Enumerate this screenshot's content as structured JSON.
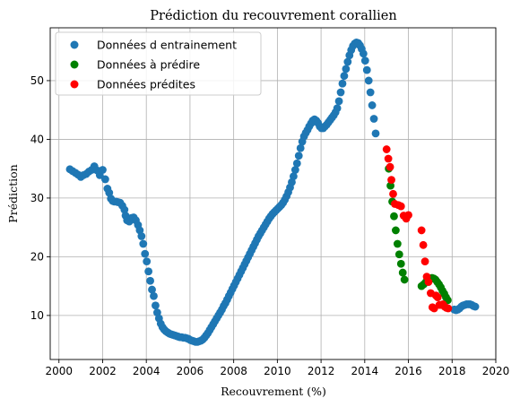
{
  "chart_data": {
    "type": "scatter",
    "title": "Prédiction du recouvrement corallien",
    "xlabel": "Recouvrement (%)",
    "ylabel": "Prédiction",
    "xlim": [
      1999.6,
      2020.0
    ],
    "ylim": [
      2.5,
      59.0
    ],
    "xticks": [
      2000,
      2002,
      2004,
      2006,
      2008,
      2010,
      2012,
      2014,
      2016,
      2018,
      2020
    ],
    "yticks": [
      10,
      20,
      30,
      40,
      50
    ],
    "grid": true,
    "legend_position": "top-left",
    "series": [
      {
        "name": "Données d entrainement",
        "color": "#1f77b4",
        "points": [
          [
            2000.5,
            34.9
          ],
          [
            2000.62,
            34.6
          ],
          [
            2000.75,
            34.3
          ],
          [
            2000.87,
            34.0
          ],
          [
            2001.0,
            33.6
          ],
          [
            2001.12,
            33.9
          ],
          [
            2001.25,
            34.1
          ],
          [
            2001.37,
            34.5
          ],
          [
            2001.5,
            34.8
          ],
          [
            2001.62,
            35.4
          ],
          [
            2001.75,
            34.7
          ],
          [
            2001.87,
            33.9
          ],
          [
            2002.0,
            34.8
          ],
          [
            2002.12,
            33.2
          ],
          [
            2002.22,
            31.6
          ],
          [
            2002.3,
            30.9
          ],
          [
            2002.38,
            29.9
          ],
          [
            2002.46,
            29.5
          ],
          [
            2002.54,
            29.4
          ],
          [
            2002.62,
            29.4
          ],
          [
            2002.7,
            29.3
          ],
          [
            2002.8,
            29.2
          ],
          [
            2002.9,
            28.7
          ],
          [
            2003.0,
            28.0
          ],
          [
            2003.05,
            27.0
          ],
          [
            2003.12,
            26.2
          ],
          [
            2003.22,
            26.0
          ],
          [
            2003.32,
            26.6
          ],
          [
            2003.42,
            26.7
          ],
          [
            2003.52,
            26.2
          ],
          [
            2003.62,
            25.4
          ],
          [
            2003.7,
            24.5
          ],
          [
            2003.78,
            23.5
          ],
          [
            2003.86,
            22.2
          ],
          [
            2003.94,
            20.5
          ],
          [
            2004.02,
            19.2
          ],
          [
            2004.1,
            17.5
          ],
          [
            2004.18,
            15.9
          ],
          [
            2004.26,
            14.4
          ],
          [
            2004.34,
            13.3
          ],
          [
            2004.42,
            11.7
          ],
          [
            2004.5,
            10.5
          ],
          [
            2004.58,
            9.5
          ],
          [
            2004.66,
            8.6
          ],
          [
            2004.74,
            8.0
          ],
          [
            2004.82,
            7.6
          ],
          [
            2004.9,
            7.3
          ],
          [
            2004.98,
            7.1
          ],
          [
            2005.06,
            6.9
          ],
          [
            2005.14,
            6.8
          ],
          [
            2005.22,
            6.7
          ],
          [
            2005.3,
            6.6
          ],
          [
            2005.38,
            6.5
          ],
          [
            2005.46,
            6.4
          ],
          [
            2005.54,
            6.3
          ],
          [
            2005.62,
            6.3
          ],
          [
            2005.7,
            6.2
          ],
          [
            2005.78,
            6.2
          ],
          [
            2005.86,
            6.1
          ],
          [
            2005.94,
            6.0
          ],
          [
            2006.02,
            5.8
          ],
          [
            2006.1,
            5.7
          ],
          [
            2006.18,
            5.6
          ],
          [
            2006.26,
            5.5
          ],
          [
            2006.34,
            5.5
          ],
          [
            2006.42,
            5.6
          ],
          [
            2006.5,
            5.7
          ],
          [
            2006.58,
            5.9
          ],
          [
            2006.66,
            6.2
          ],
          [
            2006.74,
            6.6
          ],
          [
            2006.82,
            7.0
          ],
          [
            2006.9,
            7.5
          ],
          [
            2006.98,
            8.0
          ],
          [
            2007.06,
            8.5
          ],
          [
            2007.14,
            9.0
          ],
          [
            2007.22,
            9.5
          ],
          [
            2007.3,
            10.0
          ],
          [
            2007.38,
            10.5
          ],
          [
            2007.46,
            11.0
          ],
          [
            2007.54,
            11.6
          ],
          [
            2007.62,
            12.1
          ],
          [
            2007.7,
            12.7
          ],
          [
            2007.78,
            13.3
          ],
          [
            2007.86,
            13.9
          ],
          [
            2007.94,
            14.5
          ],
          [
            2008.02,
            15.1
          ],
          [
            2008.1,
            15.7
          ],
          [
            2008.18,
            16.3
          ],
          [
            2008.26,
            16.9
          ],
          [
            2008.34,
            17.5
          ],
          [
            2008.42,
            18.1
          ],
          [
            2008.5,
            18.7
          ],
          [
            2008.58,
            19.3
          ],
          [
            2008.66,
            19.9
          ],
          [
            2008.74,
            20.5
          ],
          [
            2008.82,
            21.1
          ],
          [
            2008.9,
            21.7
          ],
          [
            2008.98,
            22.3
          ],
          [
            2009.06,
            22.9
          ],
          [
            2009.14,
            23.5
          ],
          [
            2009.22,
            24.0
          ],
          [
            2009.3,
            24.5
          ],
          [
            2009.38,
            25.0
          ],
          [
            2009.46,
            25.5
          ],
          [
            2009.54,
            26.0
          ],
          [
            2009.62,
            26.5
          ],
          [
            2009.7,
            26.9
          ],
          [
            2009.78,
            27.3
          ],
          [
            2009.86,
            27.6
          ],
          [
            2009.94,
            27.9
          ],
          [
            2010.02,
            28.2
          ],
          [
            2010.1,
            28.5
          ],
          [
            2010.18,
            28.8
          ],
          [
            2010.26,
            29.2
          ],
          [
            2010.34,
            29.7
          ],
          [
            2010.42,
            30.3
          ],
          [
            2010.5,
            31.0
          ],
          [
            2010.58,
            31.8
          ],
          [
            2010.66,
            32.7
          ],
          [
            2010.74,
            33.7
          ],
          [
            2010.82,
            34.8
          ],
          [
            2010.9,
            35.9
          ],
          [
            2010.98,
            37.2
          ],
          [
            2011.06,
            38.5
          ],
          [
            2011.14,
            39.6
          ],
          [
            2011.22,
            40.5
          ],
          [
            2011.3,
            41.1
          ],
          [
            2011.38,
            41.6
          ],
          [
            2011.46,
            42.2
          ],
          [
            2011.54,
            42.7
          ],
          [
            2011.62,
            43.2
          ],
          [
            2011.7,
            43.4
          ],
          [
            2011.78,
            43.2
          ],
          [
            2011.86,
            42.8
          ],
          [
            2011.94,
            42.2
          ],
          [
            2012.02,
            41.9
          ],
          [
            2012.1,
            41.9
          ],
          [
            2012.18,
            42.2
          ],
          [
            2012.26,
            42.5
          ],
          [
            2012.34,
            42.9
          ],
          [
            2012.42,
            43.3
          ],
          [
            2012.5,
            43.7
          ],
          [
            2012.58,
            44.1
          ],
          [
            2012.66,
            44.6
          ],
          [
            2012.74,
            45.3
          ],
          [
            2012.82,
            46.5
          ],
          [
            2012.9,
            48.0
          ],
          [
            2012.98,
            49.5
          ],
          [
            2013.06,
            50.8
          ],
          [
            2013.14,
            52.0
          ],
          [
            2013.22,
            53.2
          ],
          [
            2013.3,
            54.3
          ],
          [
            2013.38,
            55.2
          ],
          [
            2013.46,
            55.9
          ],
          [
            2013.54,
            56.3
          ],
          [
            2013.62,
            56.5
          ],
          [
            2013.7,
            56.4
          ],
          [
            2013.78,
            56.0
          ],
          [
            2013.86,
            55.4
          ],
          [
            2013.94,
            54.6
          ],
          [
            2014.02,
            53.4
          ],
          [
            2014.1,
            51.8
          ],
          [
            2014.18,
            50.0
          ],
          [
            2014.26,
            48.0
          ],
          [
            2014.34,
            45.8
          ],
          [
            2014.42,
            43.5
          ],
          [
            2014.5,
            41.0
          ],
          [
            2018.1,
            11.0
          ],
          [
            2018.18,
            10.9
          ],
          [
            2018.26,
            11.0
          ],
          [
            2018.34,
            11.2
          ],
          [
            2018.42,
            11.5
          ],
          [
            2018.5,
            11.7
          ],
          [
            2018.58,
            11.8
          ],
          [
            2018.66,
            11.9
          ],
          [
            2018.74,
            11.9
          ],
          [
            2018.82,
            11.9
          ],
          [
            2018.9,
            11.8
          ],
          [
            2018.98,
            11.6
          ],
          [
            2019.06,
            11.5
          ]
        ]
      },
      {
        "name": "Données à prédire",
        "color": "#008000",
        "points": [
          [
            2015.1,
            35.0
          ],
          [
            2015.18,
            32.1
          ],
          [
            2015.26,
            29.4
          ],
          [
            2015.34,
            26.9
          ],
          [
            2015.42,
            24.5
          ],
          [
            2015.5,
            22.2
          ],
          [
            2015.58,
            20.4
          ],
          [
            2015.66,
            18.8
          ],
          [
            2015.74,
            17.3
          ],
          [
            2015.82,
            16.1
          ],
          [
            2016.6,
            15.0
          ],
          [
            2016.7,
            15.3
          ],
          [
            2016.8,
            15.7
          ],
          [
            2016.9,
            16.0
          ],
          [
            2017.0,
            16.2
          ],
          [
            2017.08,
            16.4
          ],
          [
            2017.16,
            16.3
          ],
          [
            2017.24,
            16.1
          ],
          [
            2017.32,
            15.7
          ],
          [
            2017.4,
            15.3
          ],
          [
            2017.48,
            14.8
          ],
          [
            2017.56,
            14.2
          ],
          [
            2017.64,
            13.7
          ],
          [
            2017.72,
            13.1
          ],
          [
            2017.8,
            12.6
          ]
        ]
      },
      {
        "name": "Données prédites",
        "color": "#ff0000",
        "points": [
          [
            2015.0,
            38.3
          ],
          [
            2015.08,
            36.7
          ],
          [
            2015.16,
            35.3
          ],
          [
            2015.22,
            33.1
          ],
          [
            2015.3,
            30.7
          ],
          [
            2015.38,
            29.0
          ],
          [
            2015.54,
            28.8
          ],
          [
            2015.66,
            28.6
          ],
          [
            2015.78,
            27.0
          ],
          [
            2015.9,
            26.5
          ],
          [
            2016.0,
            27.1
          ],
          [
            2016.6,
            24.5
          ],
          [
            2016.68,
            22.0
          ],
          [
            2016.76,
            19.2
          ],
          [
            2016.84,
            16.6
          ],
          [
            2016.92,
            15.7
          ],
          [
            2017.02,
            13.8
          ],
          [
            2017.1,
            11.4
          ],
          [
            2017.18,
            11.2
          ],
          [
            2017.26,
            13.4
          ],
          [
            2017.34,
            13.1
          ],
          [
            2017.42,
            11.8
          ],
          [
            2017.5,
            11.8
          ],
          [
            2017.58,
            11.9
          ],
          [
            2017.66,
            11.5
          ],
          [
            2017.74,
            11.3
          ],
          [
            2017.82,
            11.2
          ]
        ]
      }
    ]
  }
}
